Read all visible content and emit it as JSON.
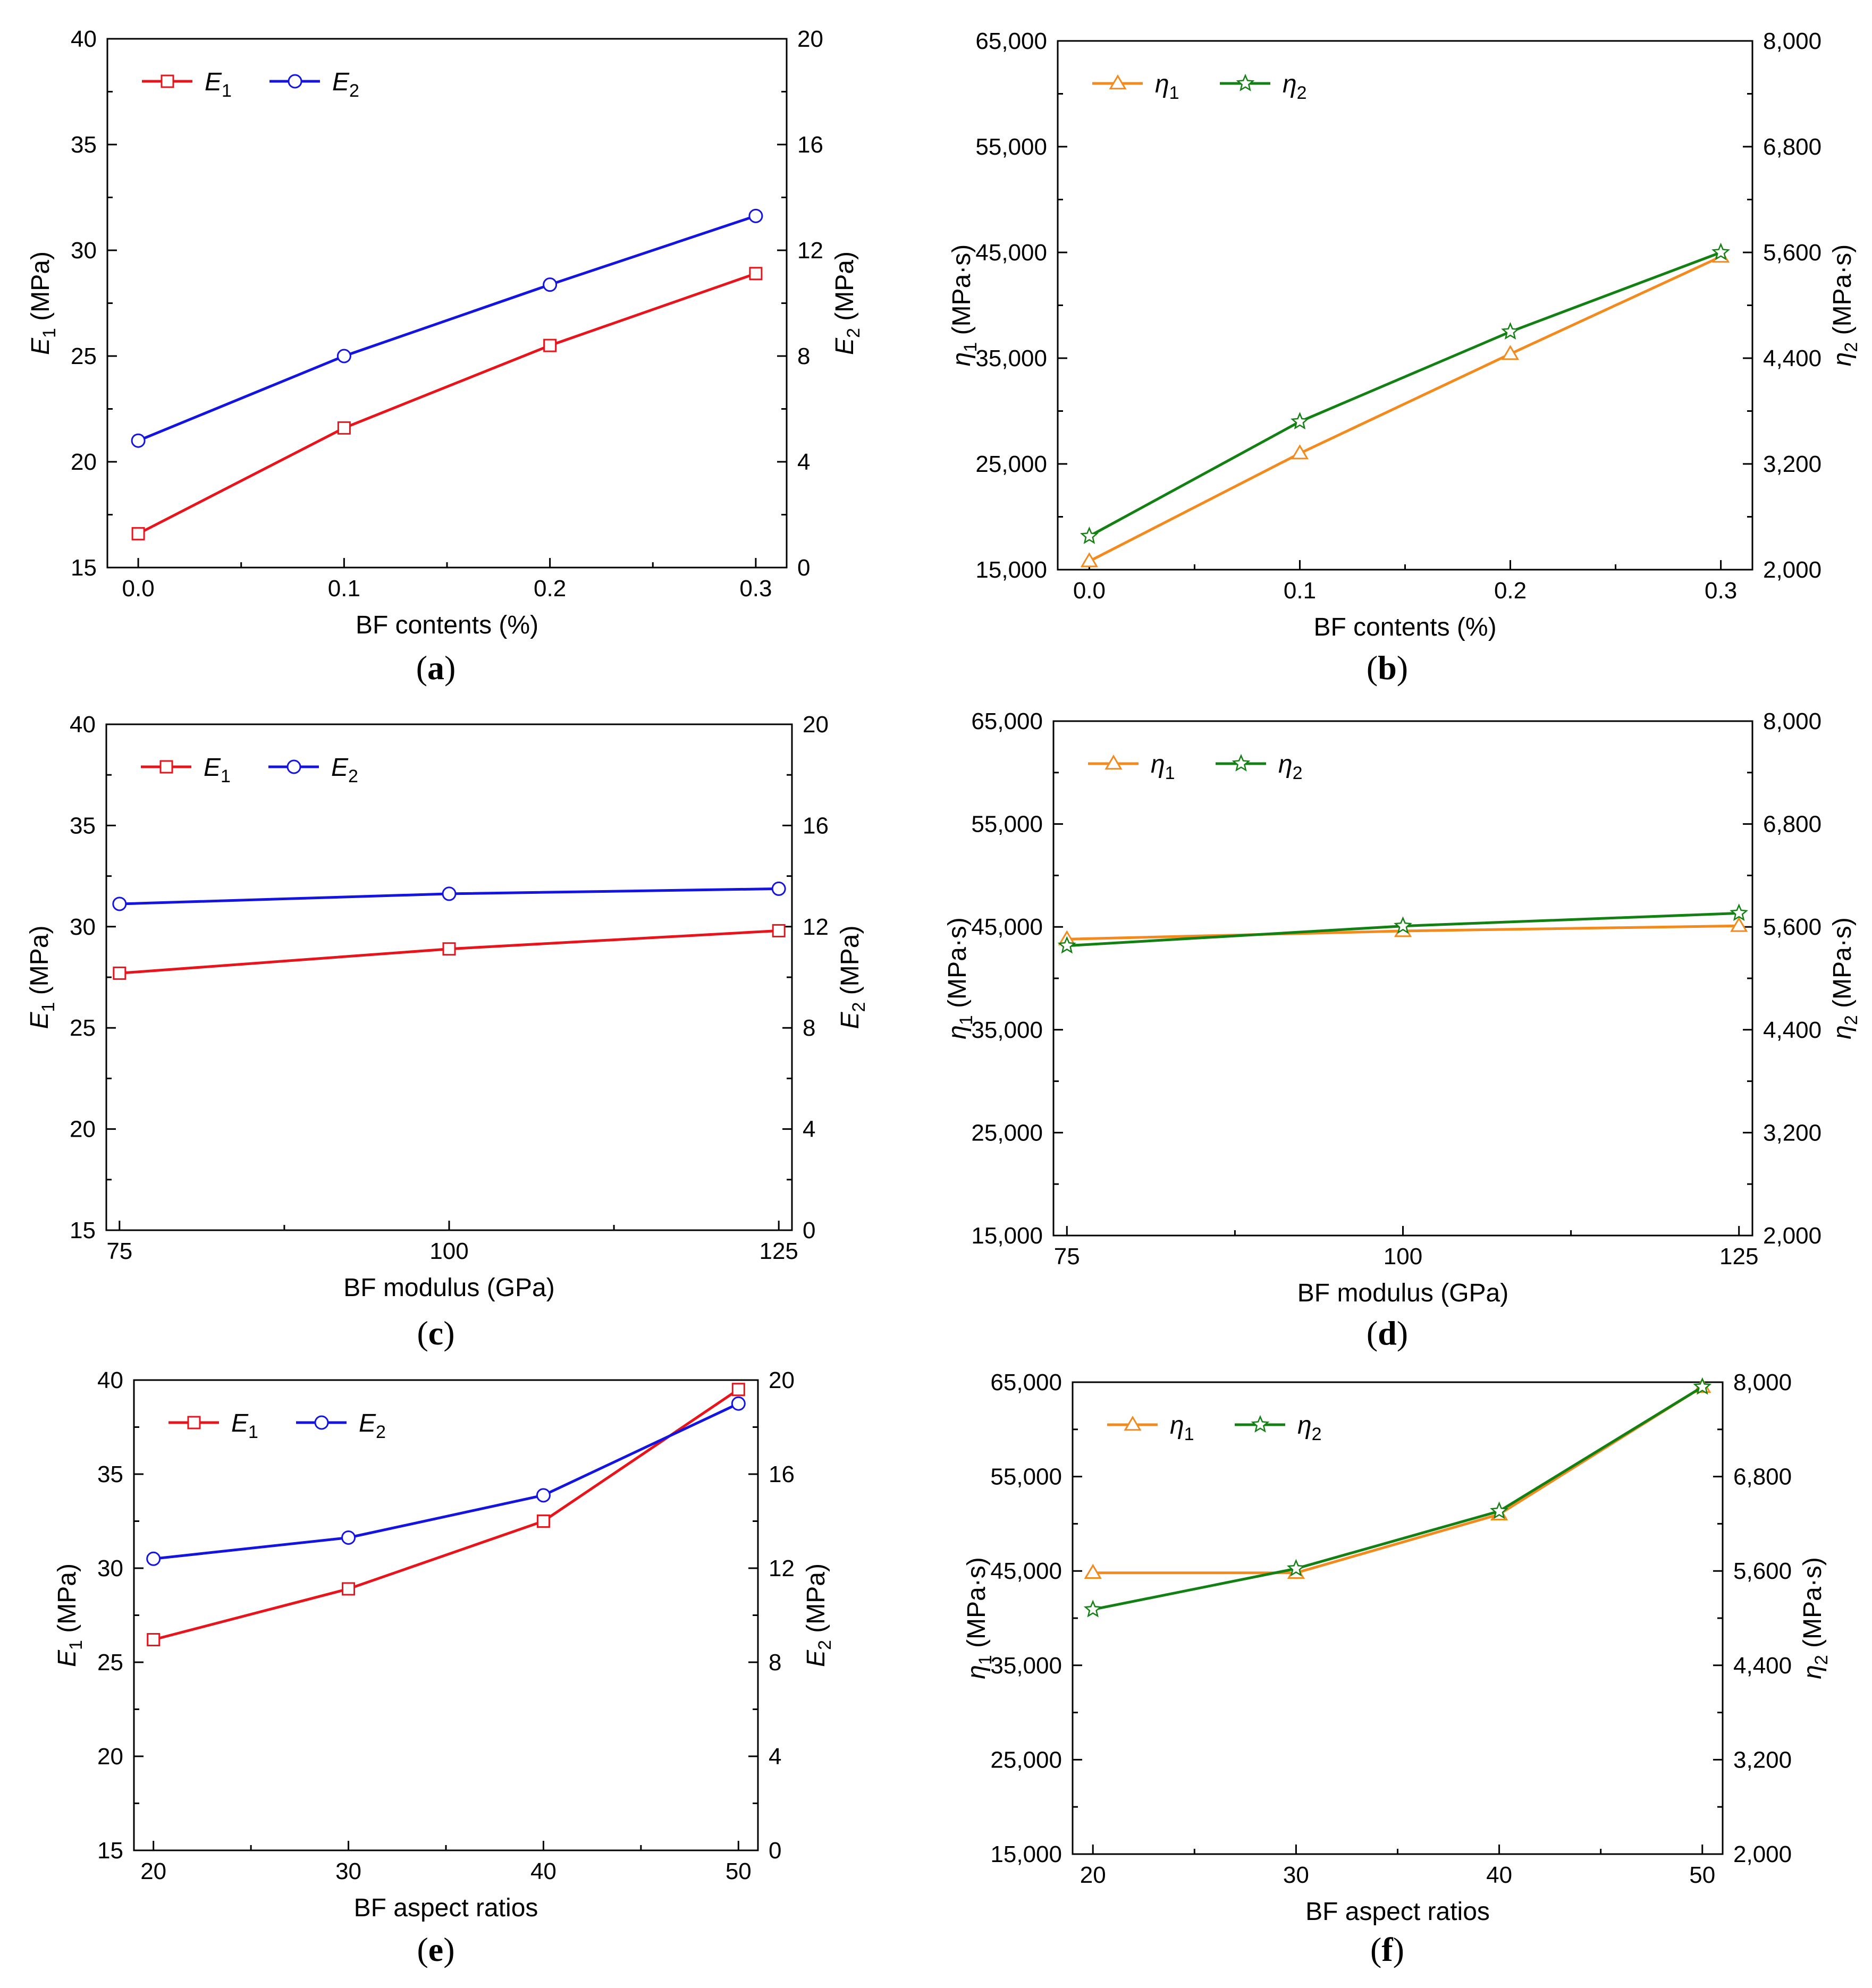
{
  "chart_data": [
    {
      "panel": "(a)",
      "type": "line",
      "x": [
        0.0,
        0.1,
        0.2,
        0.3
      ],
      "x_ticks": [
        "0.0",
        "0.1",
        "0.2",
        "0.3"
      ],
      "xlim": [
        -0.015,
        0.315
      ],
      "xlabel": "BF contents (%)",
      "ylabel_left": "E1 (MPa)",
      "ylim_left": [
        15,
        40
      ],
      "yticks_left": [
        "15",
        "20",
        "25",
        "30",
        "35",
        "40"
      ],
      "ylabel_right": "E2 (MPa)",
      "ylim_right": [
        0,
        20
      ],
      "yticks_right": [
        "0",
        "4",
        "8",
        "12",
        "16",
        "20"
      ],
      "legend": "top-left",
      "series": [
        {
          "name": "E1",
          "axis": "left",
          "color": "#e8141c",
          "marker": "square",
          "values": [
            16.6,
            21.6,
            25.5,
            28.9
          ]
        },
        {
          "name": "E2",
          "axis": "right",
          "color": "#1414e0",
          "marker": "circle",
          "values": [
            4.8,
            8.0,
            10.7,
            13.3
          ]
        }
      ]
    },
    {
      "panel": "(b)",
      "type": "line",
      "x": [
        0.0,
        0.1,
        0.2,
        0.3
      ],
      "x_ticks": [
        "0.0",
        "0.1",
        "0.2",
        "0.3"
      ],
      "xlim": [
        -0.015,
        0.315
      ],
      "xlabel": "BF contents (%)",
      "ylabel_left": "η1 (MPa·s)",
      "ylim_left": [
        15000,
        65000
      ],
      "yticks_left": [
        "15,000",
        "25,000",
        "35,000",
        "45,000",
        "55,000",
        "65,000"
      ],
      "ylabel_right": "η2 (MPa·s)",
      "ylim_right": [
        2000,
        8000
      ],
      "yticks_right": [
        "2,000",
        "3,200",
        "4,400",
        "5,600",
        "6,800",
        "8,000"
      ],
      "legend": "top-left",
      "series": [
        {
          "name": "η1",
          "axis": "left",
          "color": "#f28a1e",
          "marker": "triangle",
          "values": [
            15800,
            26000,
            35400,
            44600
          ]
        },
        {
          "name": "η2",
          "axis": "right",
          "color": "#128012",
          "marker": "star",
          "values": [
            2380,
            3680,
            4700,
            5600
          ]
        }
      ]
    },
    {
      "panel": "(c)",
      "type": "line",
      "x": [
        75,
        100,
        125
      ],
      "x_ticks": [
        "75",
        "100",
        "125"
      ],
      "xlim": [
        74,
        126
      ],
      "xlabel": "BF modulus (GPa)",
      "ylabel_left": "E1 (MPa)",
      "ylim_left": [
        15,
        40
      ],
      "yticks_left": [
        "15",
        "20",
        "25",
        "30",
        "35",
        "40"
      ],
      "ylabel_right": "E2 (MPa)",
      "ylim_right": [
        0,
        20
      ],
      "yticks_right": [
        "0",
        "4",
        "8",
        "12",
        "16",
        "20"
      ],
      "legend": "top-left",
      "series": [
        {
          "name": "E1",
          "axis": "left",
          "color": "#e8141c",
          "marker": "square",
          "values": [
            27.7,
            28.9,
            29.8
          ]
        },
        {
          "name": "E2",
          "axis": "right",
          "color": "#1414e0",
          "marker": "circle",
          "values": [
            12.9,
            13.3,
            13.5
          ]
        }
      ]
    },
    {
      "panel": "(d)",
      "type": "line",
      "x": [
        75,
        100,
        125
      ],
      "x_ticks": [
        "75",
        "100",
        "125"
      ],
      "xlim": [
        74,
        126
      ],
      "xlabel": "BF modulus (GPa)",
      "ylabel_left": "η1 (MPa·s)",
      "ylim_left": [
        15000,
        65000
      ],
      "yticks_left": [
        "15,000",
        "25,000",
        "35,000",
        "45,000",
        "55,000",
        "65,000"
      ],
      "ylabel_right": "η2 (MPa·s)",
      "ylim_right": [
        2000,
        8000
      ],
      "yticks_right": [
        "2,000",
        "3,200",
        "4,400",
        "5,600",
        "6,800",
        "8,000"
      ],
      "legend": "top-left",
      "series": [
        {
          "name": "η1",
          "axis": "left",
          "color": "#f28a1e",
          "marker": "triangle",
          "values": [
            43800,
            44600,
            45100
          ]
        },
        {
          "name": "η2",
          "axis": "right",
          "color": "#128012",
          "marker": "star",
          "values": [
            5380,
            5610,
            5760
          ]
        }
      ]
    },
    {
      "panel": "(e)",
      "type": "line",
      "x": [
        20,
        30,
        40,
        50
      ],
      "x_ticks": [
        "20",
        "30",
        "40",
        "50"
      ],
      "xlim": [
        19,
        51
      ],
      "xlabel": "BF aspect ratios",
      "ylabel_left": "E1 (MPa)",
      "ylim_left": [
        15,
        40
      ],
      "yticks_left": [
        "15",
        "20",
        "25",
        "30",
        "35",
        "40"
      ],
      "ylabel_right": "E2 (MPa)",
      "ylim_right": [
        0,
        20
      ],
      "yticks_right": [
        "0",
        "4",
        "8",
        "12",
        "16",
        "20"
      ],
      "legend": "top-left",
      "series": [
        {
          "name": "E1",
          "axis": "left",
          "color": "#e8141c",
          "marker": "square",
          "values": [
            26.2,
            28.9,
            32.5,
            39.5
          ]
        },
        {
          "name": "E2",
          "axis": "right",
          "color": "#1414e0",
          "marker": "circle",
          "values": [
            12.4,
            13.3,
            15.1,
            19.0
          ]
        }
      ]
    },
    {
      "panel": "(f)",
      "type": "line",
      "x": [
        20,
        30,
        40,
        50
      ],
      "x_ticks": [
        "20",
        "30",
        "40",
        "50"
      ],
      "xlim": [
        19,
        51
      ],
      "xlabel": "BF aspect ratios",
      "ylabel_left": "η1 (MPa·s)",
      "ylim_left": [
        15000,
        65000
      ],
      "yticks_left": [
        "15,000",
        "25,000",
        "35,000",
        "45,000",
        "55,000",
        "65,000"
      ],
      "ylabel_right": "η2 (MPa·s)",
      "ylim_right": [
        2000,
        8000
      ],
      "yticks_right": [
        "2,000",
        "3,200",
        "4,400",
        "5,600",
        "6,800",
        "8,000"
      ],
      "legend": "top-left",
      "series": [
        {
          "name": "η1",
          "axis": "left",
          "color": "#f28a1e",
          "marker": "triangle",
          "values": [
            44800,
            44800,
            51000,
            64500
          ]
        },
        {
          "name": "η2",
          "axis": "right",
          "color": "#128012",
          "marker": "star",
          "values": [
            5110,
            5630,
            6360,
            7940
          ]
        }
      ]
    }
  ],
  "captions": {
    "a": {
      "open": "(",
      "letter": "a",
      "close": ")"
    },
    "b": {
      "open": "(",
      "letter": "b",
      "close": ")"
    },
    "c": {
      "open": "(",
      "letter": "c",
      "close": ")"
    },
    "d": {
      "open": "(",
      "letter": "d",
      "close": ")"
    },
    "e": {
      "open": "(",
      "letter": "e",
      "close": ")"
    },
    "f": {
      "open": "(",
      "letter": "f",
      "close": ")"
    }
  }
}
